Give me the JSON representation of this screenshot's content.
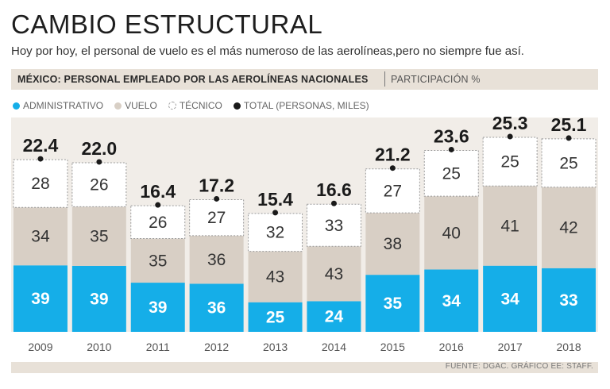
{
  "title": "CAMBIO ESTRUCTURAL",
  "subtitle": "Hoy por hoy, el personal de vuelo es el más numeroso de las aerolíneas,pero no siempre fue así.",
  "band": {
    "main": "MÉXICO: PERSONAL EMPLEADO POR LAS AEROLÍNEAS NACIONALES",
    "sub": "PARTICIPACIÓN %"
  },
  "legend": [
    {
      "key": "administrativo",
      "label": "ADMINISTRATIVO"
    },
    {
      "key": "vuelo",
      "label": "VUELO"
    },
    {
      "key": "tecnico",
      "label": "TÉCNICO"
    },
    {
      "key": "total",
      "label": "TOTAL (PERSONAS, MILES)"
    }
  ],
  "source": "FUENTE: DGAC. GRÁFICO EE: STAFF.",
  "colors": {
    "administrativo": "#15aee8",
    "vuelo": "#d8cfc5",
    "tecnico": "#ffffff",
    "total": "#1a1a1a",
    "plot_bg": "#f1ede8"
  },
  "chart_data": {
    "type": "bar",
    "stacked": true,
    "title": "MÉXICO: PERSONAL EMPLEADO POR LAS AEROLÍNEAS NACIONALES",
    "ylabel": "PARTICIPACIÓN %",
    "categories": [
      "2009",
      "2010",
      "2011",
      "2012",
      "2013",
      "2014",
      "2015",
      "2016",
      "2017",
      "2018"
    ],
    "series": [
      {
        "name": "ADMINISTRATIVO",
        "values": [
          39,
          39,
          39,
          36,
          25,
          24,
          35,
          34,
          34,
          33
        ]
      },
      {
        "name": "VUELO",
        "values": [
          34,
          35,
          35,
          36,
          43,
          43,
          38,
          40,
          41,
          42
        ]
      },
      {
        "name": "TÉCNICO",
        "values": [
          28,
          26,
          26,
          27,
          32,
          33,
          27,
          25,
          25,
          25
        ]
      }
    ],
    "totals": {
      "name": "TOTAL (PERSONAS, MILES)",
      "values": [
        22.4,
        22.0,
        16.4,
        17.2,
        15.4,
        16.6,
        21.2,
        23.6,
        25.3,
        25.1
      ],
      "labels": [
        "22.4",
        "22.0",
        "16.4",
        "17.2",
        "15.4",
        "16.6",
        "21.2",
        "23.6",
        "25.3",
        "25.1"
      ]
    }
  }
}
